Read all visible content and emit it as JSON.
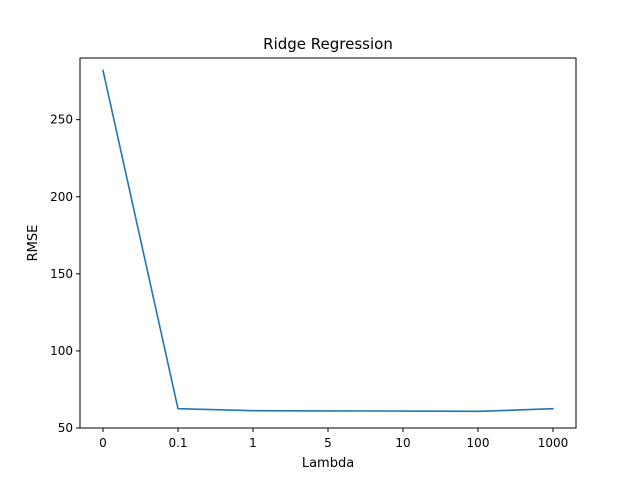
{
  "chart_data": {
    "type": "line",
    "title": "Ridge Regression",
    "xlabel": "Lambda",
    "ylabel": "RMSE",
    "categories": [
      "0",
      "0.1",
      "1",
      "5",
      "10",
      "100",
      "1000"
    ],
    "series": [
      {
        "values": [
          282,
          62.5,
          61.2,
          61.1,
          61.0,
          60.8,
          62.5
        ],
        "color": "#1f77b4"
      }
    ],
    "ylim": [
      50,
      290
    ],
    "yticks": [
      50,
      100,
      150,
      200,
      250
    ],
    "grid": false,
    "legend": "none"
  }
}
